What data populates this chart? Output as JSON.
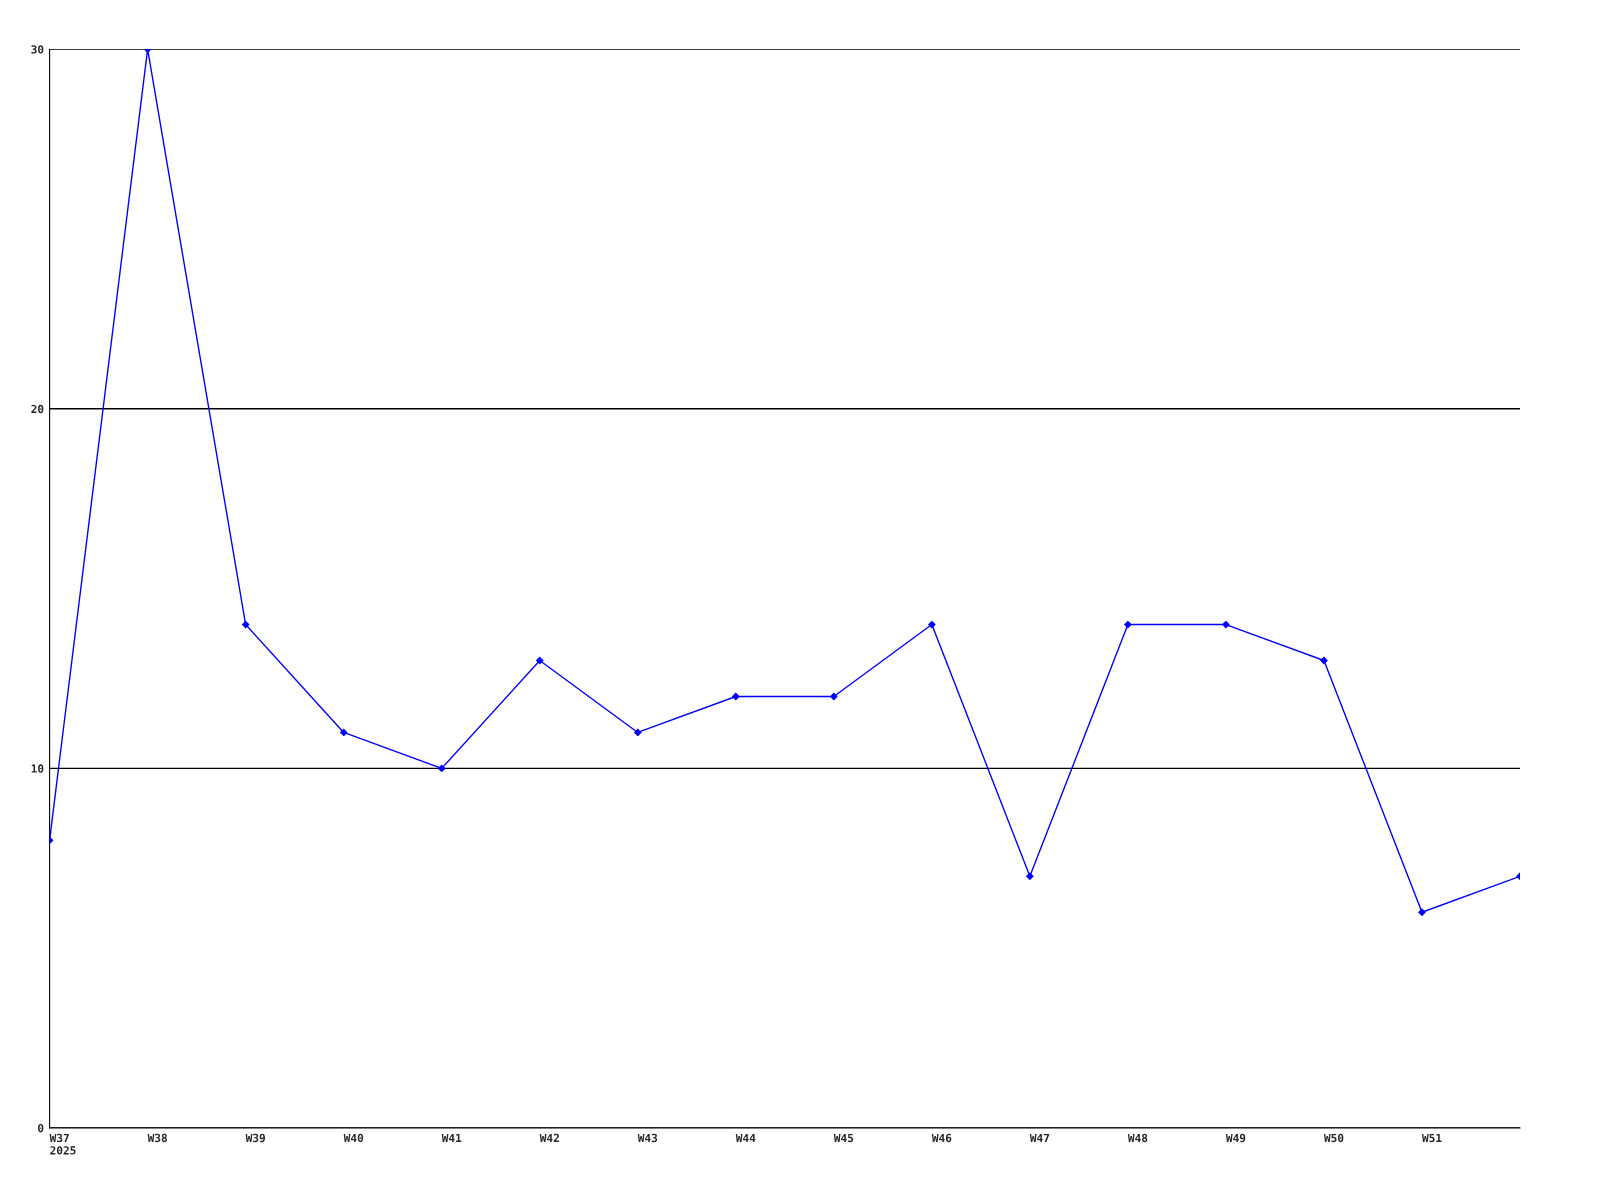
{
  "chart_data": {
    "type": "line",
    "categories": [
      "W37\n2025",
      "W38",
      "W39",
      "W40",
      "W41",
      "W42",
      "W43",
      "W44",
      "W45",
      "W46",
      "W47",
      "W48",
      "W49",
      "W50",
      "W51",
      null
    ],
    "series": [
      {
        "color": "#0000ff",
        "values": [
          8,
          30,
          14,
          11,
          10,
          13,
          11,
          12,
          12,
          14,
          7,
          14,
          14,
          13,
          6,
          7
        ]
      }
    ],
    "ylim": [
      0,
      30
    ],
    "yticks": [
      0,
      10,
      20,
      30
    ],
    "grid": "y",
    "marker": "diamond",
    "line_style": "solid"
  }
}
